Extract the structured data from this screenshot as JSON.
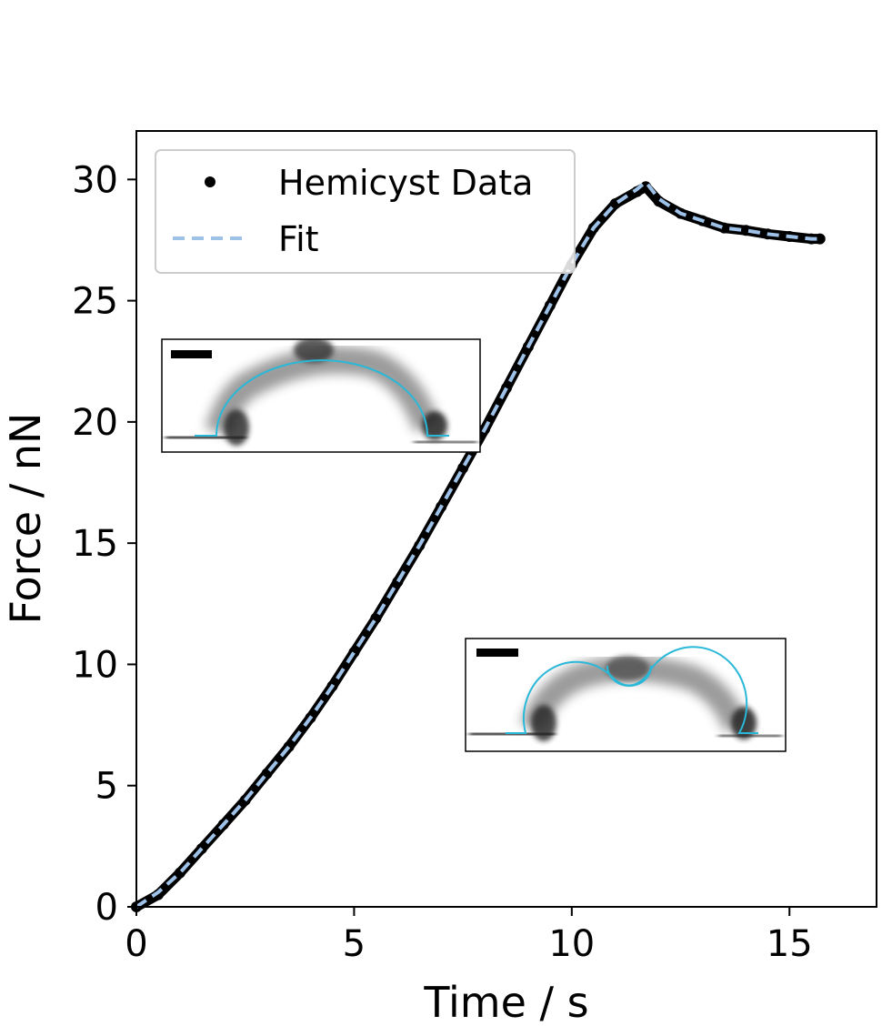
{
  "chart_data": {
    "type": "line",
    "xlabel": "Time / s",
    "ylabel": "Force / nN",
    "xlim": [
      0,
      17
    ],
    "ylim": [
      0,
      32
    ],
    "xticks": [
      0,
      5,
      10,
      15
    ],
    "yticks": [
      0,
      5,
      10,
      15,
      20,
      25,
      30
    ],
    "legend": {
      "position": "top-left",
      "entries": [
        "Hemicyst Data",
        "Fit"
      ]
    },
    "series": [
      {
        "name": "Hemicyst Data",
        "style": "points",
        "color": "#000000",
        "x": [
          0,
          0.5,
          1,
          1.5,
          2,
          2.5,
          3,
          3.5,
          4,
          4.5,
          5,
          5.5,
          6,
          6.5,
          7,
          7.5,
          8,
          8.5,
          9,
          9.5,
          10,
          10.5,
          11,
          11.5,
          11.7,
          12,
          12.5,
          13,
          13.5,
          14,
          14.5,
          15,
          15.5,
          15.7
        ],
        "y": [
          0,
          0.5,
          1.4,
          2.4,
          3.4,
          4.4,
          5.5,
          6.6,
          7.8,
          9.1,
          10.5,
          11.9,
          13.4,
          14.9,
          16.5,
          18.1,
          19.7,
          21.4,
          23.1,
          24.8,
          26.5,
          28.0,
          29.0,
          29.5,
          29.7,
          29.1,
          28.6,
          28.3,
          28.0,
          27.9,
          27.75,
          27.65,
          27.55,
          27.55
        ]
      },
      {
        "name": "Fit",
        "style": "dashed",
        "color": "#9ec1e8",
        "x": [
          0,
          0.5,
          1,
          1.5,
          2,
          2.5,
          3,
          3.5,
          4,
          4.5,
          5,
          5.5,
          6,
          6.5,
          7,
          7.5,
          8,
          8.5,
          9,
          9.5,
          10,
          10.5,
          11,
          11.5,
          11.7,
          12,
          12.5,
          13,
          13.5,
          14,
          14.5,
          15,
          15.5,
          15.7
        ],
        "y": [
          0,
          0.6,
          1.4,
          2.4,
          3.4,
          4.4,
          5.5,
          6.6,
          7.8,
          9.1,
          10.5,
          11.9,
          13.4,
          14.9,
          16.5,
          18.1,
          19.7,
          21.4,
          23.1,
          24.8,
          26.5,
          28.0,
          29.0,
          29.6,
          29.9,
          29.2,
          28.6,
          28.3,
          28.0,
          27.9,
          27.75,
          27.65,
          27.55,
          27.55
        ]
      }
    ],
    "insets": [
      {
        "image": "hemicyst-cross-section-grayscale",
        "scale_bar": true,
        "fit_overlay_color": "#2ab8d8"
      },
      {
        "image": "hemicyst-cross-section-with-dimple-grayscale",
        "scale_bar": true,
        "fit_overlay_color": "#2ab8d8"
      }
    ]
  }
}
